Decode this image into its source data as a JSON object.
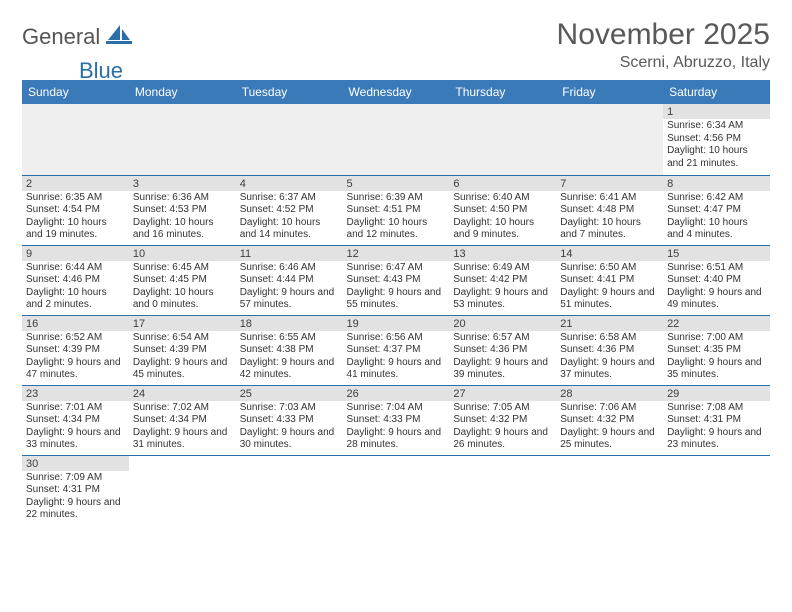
{
  "logo": {
    "text1": "General",
    "text2": "Blue"
  },
  "title": "November 2025",
  "location": "Scerni, Abruzzo, Italy",
  "colors": {
    "header_bg": "#3a7ab8",
    "header_text": "#ffffff",
    "daynum_bg": "#e2e2e2",
    "border": "#2b6fa8",
    "title_text": "#595959"
  },
  "weekdays": [
    "Sunday",
    "Monday",
    "Tuesday",
    "Wednesday",
    "Thursday",
    "Friday",
    "Saturday"
  ],
  "weeks": [
    [
      null,
      null,
      null,
      null,
      null,
      null,
      {
        "n": "1",
        "sr": "Sunrise: 6:34 AM",
        "ss": "Sunset: 4:56 PM",
        "dl": "Daylight: 10 hours and 21 minutes."
      }
    ],
    [
      {
        "n": "2",
        "sr": "Sunrise: 6:35 AM",
        "ss": "Sunset: 4:54 PM",
        "dl": "Daylight: 10 hours and 19 minutes."
      },
      {
        "n": "3",
        "sr": "Sunrise: 6:36 AM",
        "ss": "Sunset: 4:53 PM",
        "dl": "Daylight: 10 hours and 16 minutes."
      },
      {
        "n": "4",
        "sr": "Sunrise: 6:37 AM",
        "ss": "Sunset: 4:52 PM",
        "dl": "Daylight: 10 hours and 14 minutes."
      },
      {
        "n": "5",
        "sr": "Sunrise: 6:39 AM",
        "ss": "Sunset: 4:51 PM",
        "dl": "Daylight: 10 hours and 12 minutes."
      },
      {
        "n": "6",
        "sr": "Sunrise: 6:40 AM",
        "ss": "Sunset: 4:50 PM",
        "dl": "Daylight: 10 hours and 9 minutes."
      },
      {
        "n": "7",
        "sr": "Sunrise: 6:41 AM",
        "ss": "Sunset: 4:48 PM",
        "dl": "Daylight: 10 hours and 7 minutes."
      },
      {
        "n": "8",
        "sr": "Sunrise: 6:42 AM",
        "ss": "Sunset: 4:47 PM",
        "dl": "Daylight: 10 hours and 4 minutes."
      }
    ],
    [
      {
        "n": "9",
        "sr": "Sunrise: 6:44 AM",
        "ss": "Sunset: 4:46 PM",
        "dl": "Daylight: 10 hours and 2 minutes."
      },
      {
        "n": "10",
        "sr": "Sunrise: 6:45 AM",
        "ss": "Sunset: 4:45 PM",
        "dl": "Daylight: 10 hours and 0 minutes."
      },
      {
        "n": "11",
        "sr": "Sunrise: 6:46 AM",
        "ss": "Sunset: 4:44 PM",
        "dl": "Daylight: 9 hours and 57 minutes."
      },
      {
        "n": "12",
        "sr": "Sunrise: 6:47 AM",
        "ss": "Sunset: 4:43 PM",
        "dl": "Daylight: 9 hours and 55 minutes."
      },
      {
        "n": "13",
        "sr": "Sunrise: 6:49 AM",
        "ss": "Sunset: 4:42 PM",
        "dl": "Daylight: 9 hours and 53 minutes."
      },
      {
        "n": "14",
        "sr": "Sunrise: 6:50 AM",
        "ss": "Sunset: 4:41 PM",
        "dl": "Daylight: 9 hours and 51 minutes."
      },
      {
        "n": "15",
        "sr": "Sunrise: 6:51 AM",
        "ss": "Sunset: 4:40 PM",
        "dl": "Daylight: 9 hours and 49 minutes."
      }
    ],
    [
      {
        "n": "16",
        "sr": "Sunrise: 6:52 AM",
        "ss": "Sunset: 4:39 PM",
        "dl": "Daylight: 9 hours and 47 minutes."
      },
      {
        "n": "17",
        "sr": "Sunrise: 6:54 AM",
        "ss": "Sunset: 4:39 PM",
        "dl": "Daylight: 9 hours and 45 minutes."
      },
      {
        "n": "18",
        "sr": "Sunrise: 6:55 AM",
        "ss": "Sunset: 4:38 PM",
        "dl": "Daylight: 9 hours and 42 minutes."
      },
      {
        "n": "19",
        "sr": "Sunrise: 6:56 AM",
        "ss": "Sunset: 4:37 PM",
        "dl": "Daylight: 9 hours and 41 minutes."
      },
      {
        "n": "20",
        "sr": "Sunrise: 6:57 AM",
        "ss": "Sunset: 4:36 PM",
        "dl": "Daylight: 9 hours and 39 minutes."
      },
      {
        "n": "21",
        "sr": "Sunrise: 6:58 AM",
        "ss": "Sunset: 4:36 PM",
        "dl": "Daylight: 9 hours and 37 minutes."
      },
      {
        "n": "22",
        "sr": "Sunrise: 7:00 AM",
        "ss": "Sunset: 4:35 PM",
        "dl": "Daylight: 9 hours and 35 minutes."
      }
    ],
    [
      {
        "n": "23",
        "sr": "Sunrise: 7:01 AM",
        "ss": "Sunset: 4:34 PM",
        "dl": "Daylight: 9 hours and 33 minutes."
      },
      {
        "n": "24",
        "sr": "Sunrise: 7:02 AM",
        "ss": "Sunset: 4:34 PM",
        "dl": "Daylight: 9 hours and 31 minutes."
      },
      {
        "n": "25",
        "sr": "Sunrise: 7:03 AM",
        "ss": "Sunset: 4:33 PM",
        "dl": "Daylight: 9 hours and 30 minutes."
      },
      {
        "n": "26",
        "sr": "Sunrise: 7:04 AM",
        "ss": "Sunset: 4:33 PM",
        "dl": "Daylight: 9 hours and 28 minutes."
      },
      {
        "n": "27",
        "sr": "Sunrise: 7:05 AM",
        "ss": "Sunset: 4:32 PM",
        "dl": "Daylight: 9 hours and 26 minutes."
      },
      {
        "n": "28",
        "sr": "Sunrise: 7:06 AM",
        "ss": "Sunset: 4:32 PM",
        "dl": "Daylight: 9 hours and 25 minutes."
      },
      {
        "n": "29",
        "sr": "Sunrise: 7:08 AM",
        "ss": "Sunset: 4:31 PM",
        "dl": "Daylight: 9 hours and 23 minutes."
      }
    ],
    [
      {
        "n": "30",
        "sr": "Sunrise: 7:09 AM",
        "ss": "Sunset: 4:31 PM",
        "dl": "Daylight: 9 hours and 22 minutes."
      },
      null,
      null,
      null,
      null,
      null,
      null
    ]
  ]
}
